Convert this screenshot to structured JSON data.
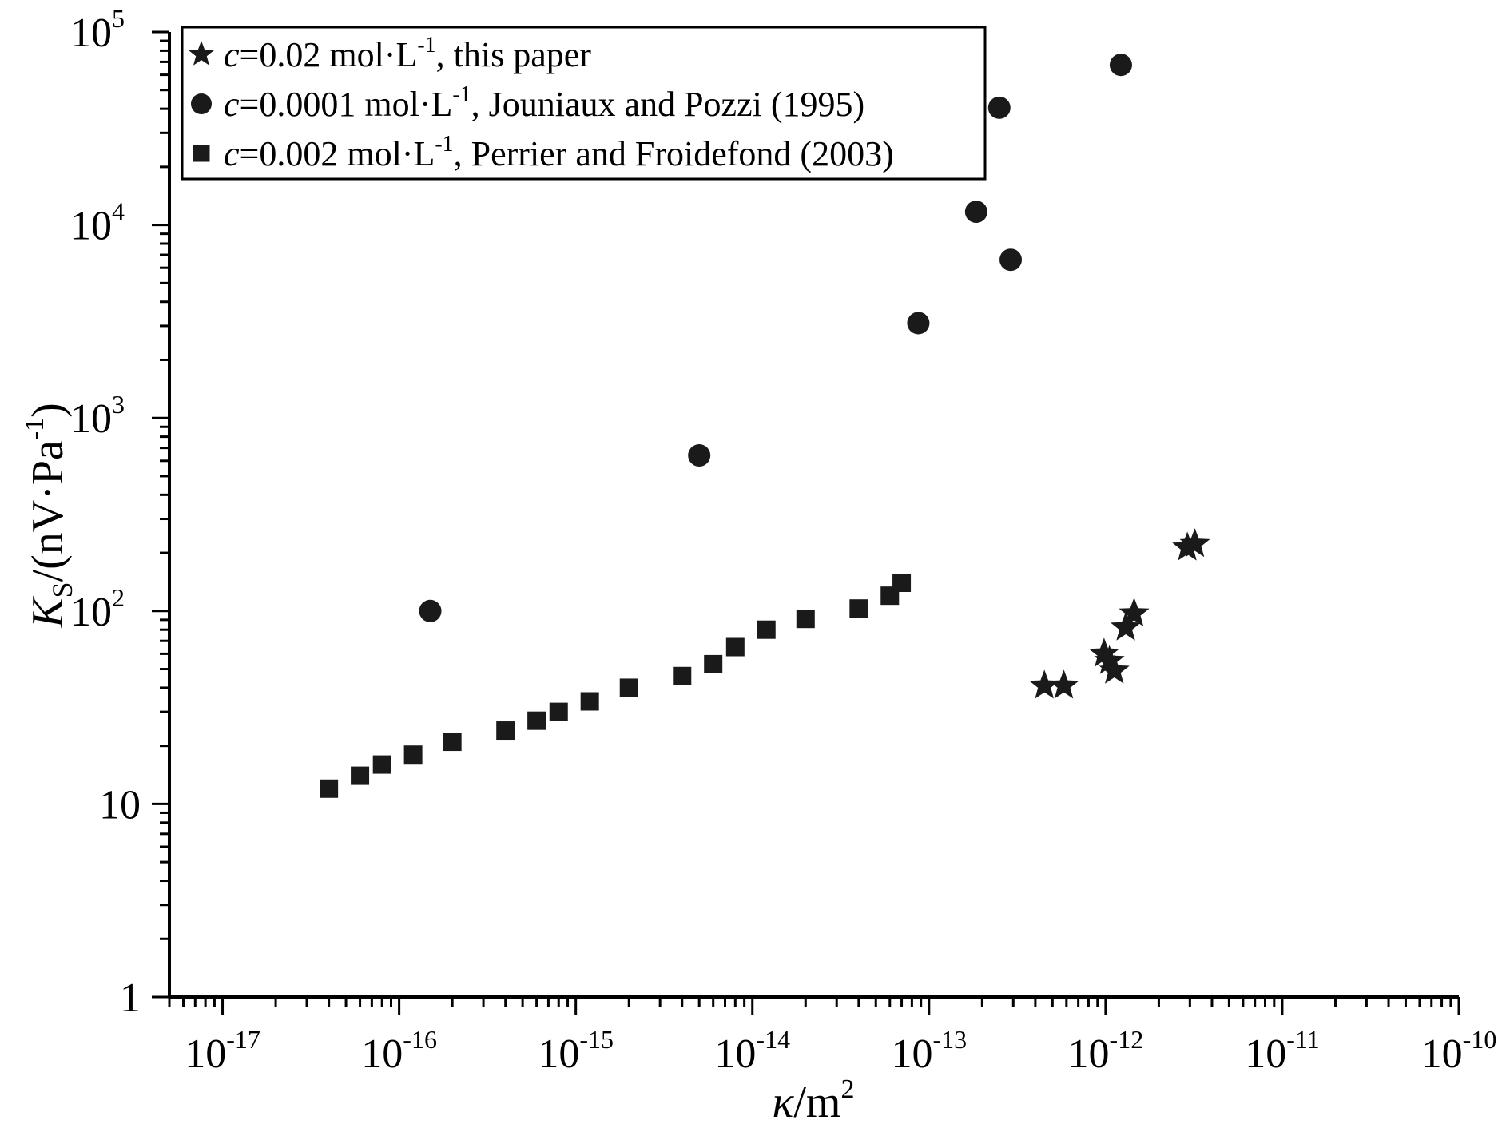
{
  "chart_data": {
    "type": "scatter",
    "x_scale": "log",
    "y_scale": "log",
    "xlim": [
      5e-18,
      1e-10
    ],
    "ylim": [
      1,
      100000
    ],
    "grid": false,
    "legend_placement": "top-left",
    "x_ticks": [
      {
        "value": 1e-17,
        "base": "10",
        "exp": "-17"
      },
      {
        "value": 1e-16,
        "base": "10",
        "exp": "-16"
      },
      {
        "value": 1e-15,
        "base": "10",
        "exp": "-15"
      },
      {
        "value": 1e-14,
        "base": "10",
        "exp": "-14"
      },
      {
        "value": 1e-13,
        "base": "10",
        "exp": "-13"
      },
      {
        "value": 1e-12,
        "base": "10",
        "exp": "-12"
      },
      {
        "value": 1e-11,
        "base": "10",
        "exp": "-11"
      },
      {
        "value": 1e-10,
        "base": "10",
        "exp": "-10"
      }
    ],
    "y_ticks": [
      {
        "value": 1,
        "base": "1",
        "exp": ""
      },
      {
        "value": 10,
        "base": "10",
        "exp": ""
      },
      {
        "value": 100,
        "base": "10",
        "exp": "2"
      },
      {
        "value": 1000,
        "base": "10",
        "exp": "3"
      },
      {
        "value": 10000,
        "base": "10",
        "exp": "4"
      },
      {
        "value": 100000,
        "base": "10",
        "exp": "5"
      }
    ],
    "xlabel": {
      "symbol": "κ",
      "unit": "/m",
      "exp": "2"
    },
    "ylabel": {
      "symbol": "K",
      "sub": "S",
      "unit_pre": "/(nV·Pa",
      "exp": "-1",
      "unit_post": ")"
    },
    "series": [
      {
        "name": "c=0.02 mol·L-1, this paper",
        "legend": {
          "c": "c",
          "pre": "=0.02 mol·L",
          "exp": "-1",
          "post": ", this paper"
        },
        "marker": "star",
        "color": "#1a1a1a",
        "points": [
          {
            "x": 4.5e-13,
            "y": 41
          },
          {
            "x": 5.8e-13,
            "y": 41
          },
          {
            "x": 9.8e-13,
            "y": 60
          },
          {
            "x": 1.05e-12,
            "y": 55
          },
          {
            "x": 1.12e-12,
            "y": 49
          },
          {
            "x": 1.3e-12,
            "y": 82
          },
          {
            "x": 1.45e-12,
            "y": 97
          },
          {
            "x": 2.9e-12,
            "y": 213
          },
          {
            "x": 3.2e-12,
            "y": 222
          }
        ]
      },
      {
        "name": "c=0.0001 mol·L-1, Jouniaux and Pozzi (1995)",
        "legend": {
          "c": "c",
          "pre": "=0.0001 mol·L",
          "exp": "-1",
          "post": ", Jouniaux and Pozzi (1995)"
        },
        "marker": "circle",
        "color": "#1a1a1a",
        "points": [
          {
            "x": 1.5e-16,
            "y": 100
          },
          {
            "x": 5e-15,
            "y": 640
          },
          {
            "x": 8.7e-14,
            "y": 3100
          },
          {
            "x": 1.85e-13,
            "y": 11700
          },
          {
            "x": 2.5e-13,
            "y": 40500
          },
          {
            "x": 2.9e-13,
            "y": 6600
          },
          {
            "x": 1.22e-12,
            "y": 67500
          }
        ]
      },
      {
        "name": "c=0.002 mol·L-1, Perrier and Froidefond (2003)",
        "legend": {
          "c": "c",
          "pre": "=0.002 mol·L",
          "exp": "-1",
          "post": ", Perrier and Froidefond (2003)"
        },
        "marker": "square",
        "color": "#1a1a1a",
        "points": [
          {
            "x": 4e-17,
            "y": 12
          },
          {
            "x": 6e-17,
            "y": 14
          },
          {
            "x": 8e-17,
            "y": 16
          },
          {
            "x": 1.2e-16,
            "y": 18
          },
          {
            "x": 2e-16,
            "y": 21
          },
          {
            "x": 4e-16,
            "y": 24
          },
          {
            "x": 6e-16,
            "y": 27
          },
          {
            "x": 8e-16,
            "y": 30
          },
          {
            "x": 1.2e-15,
            "y": 34
          },
          {
            "x": 2e-15,
            "y": 40
          },
          {
            "x": 4e-15,
            "y": 46
          },
          {
            "x": 6e-15,
            "y": 53
          },
          {
            "x": 8e-15,
            "y": 65
          },
          {
            "x": 1.2e-14,
            "y": 80
          },
          {
            "x": 2e-14,
            "y": 91
          },
          {
            "x": 4e-14,
            "y": 103
          },
          {
            "x": 6e-14,
            "y": 120
          },
          {
            "x": 7e-14,
            "y": 140
          }
        ]
      }
    ]
  }
}
